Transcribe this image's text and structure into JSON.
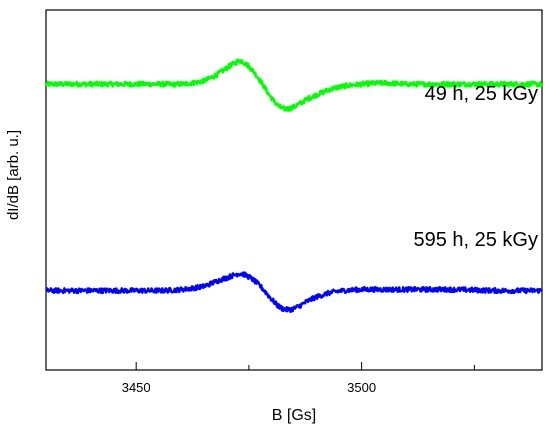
{
  "chart_data": {
    "type": "line",
    "xlabel": "B [Gs]",
    "ylabel": "dI/dB [arb. u.]",
    "xlim": [
      3430,
      3540
    ],
    "ylim": [
      -1.7,
      1.7
    ],
    "x_ticks": [
      3450,
      3500
    ],
    "x_tick_labels": [
      "3450",
      "3500"
    ],
    "grid": false,
    "show_y_tick_labels": false,
    "series": [
      {
        "name": "49 h, 25 kGy",
        "color": "#00ff00",
        "baseline": 1.0,
        "x": [
          3430,
          3435,
          3440,
          3445,
          3450,
          3455,
          3460,
          3465,
          3468,
          3470,
          3472,
          3473,
          3474,
          3476,
          3478,
          3480,
          3482,
          3484,
          3486,
          3488,
          3490,
          3493,
          3496,
          3500,
          3505,
          3510,
          3520,
          3530,
          3540
        ],
        "y": [
          1.0,
          1.0,
          1.0,
          1.0,
          1.0,
          1.0,
          1.0,
          1.03,
          1.09,
          1.15,
          1.2,
          1.22,
          1.2,
          1.12,
          1.0,
          0.87,
          0.78,
          0.77,
          0.81,
          0.86,
          0.9,
          0.95,
          0.98,
          1.0,
          1.01,
          1.0,
          1.0,
          1.0,
          1.0
        ]
      },
      {
        "name": "595 h, 25 kGy",
        "color": "#0000ff",
        "baseline": -0.95,
        "x": [
          3430,
          3435,
          3440,
          3445,
          3450,
          3455,
          3460,
          3465,
          3468,
          3470,
          3472,
          3473,
          3474,
          3476,
          3478,
          3480,
          3482,
          3484,
          3486,
          3488,
          3490,
          3493,
          3496,
          3500,
          3505,
          3510,
          3520,
          3530,
          3540
        ],
        "y": [
          -0.95,
          -0.95,
          -0.95,
          -0.95,
          -0.95,
          -0.95,
          -0.94,
          -0.91,
          -0.86,
          -0.83,
          -0.8,
          -0.79,
          -0.8,
          -0.85,
          -0.93,
          -1.03,
          -1.11,
          -1.13,
          -1.1,
          -1.05,
          -1.01,
          -0.97,
          -0.95,
          -0.94,
          -0.94,
          -0.94,
          -0.94,
          -0.95,
          -0.95
        ]
      }
    ],
    "annotations": [
      "49 h, 25 kGy",
      "595 h, 25 kGy"
    ]
  }
}
